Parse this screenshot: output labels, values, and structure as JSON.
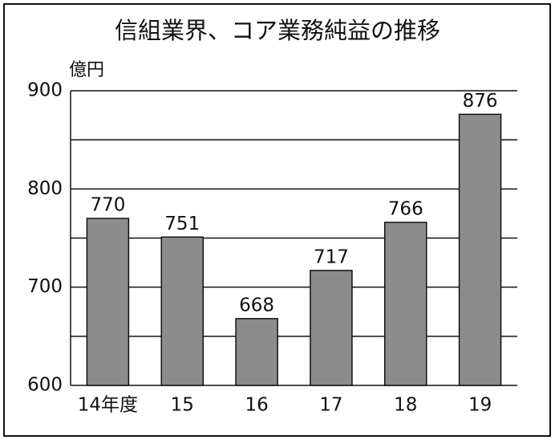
{
  "chart_data": {
    "type": "bar",
    "title": "信組業界、コア業務純益の推移",
    "y_unit": "億円",
    "categories": [
      "14年度",
      "15",
      "16",
      "17",
      "18",
      "19"
    ],
    "values": [
      770,
      751,
      668,
      717,
      766,
      876
    ],
    "color": "#8c8c8c",
    "ylim": [
      600,
      900
    ],
    "yticks": [
      600,
      700,
      800,
      900
    ],
    "minor_yticks": [
      650,
      750,
      850
    ],
    "grid": true,
    "value_labels_shown": true
  }
}
